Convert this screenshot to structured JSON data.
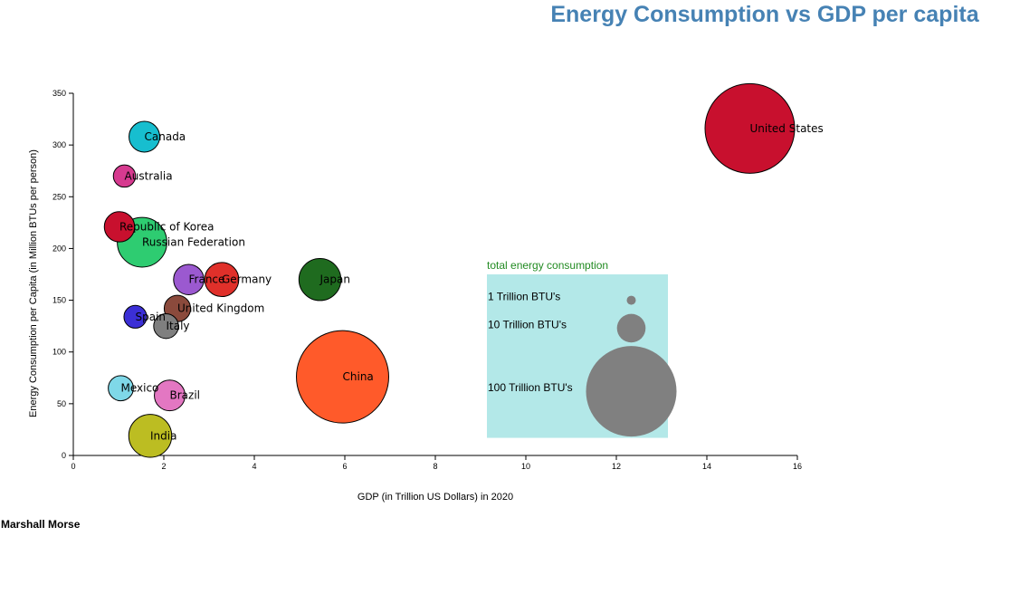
{
  "title": "Energy Consumption vs GDP per capita",
  "author": "Marshall Morse",
  "chart_data": {
    "type": "scatter",
    "title": "Energy Consumption vs GDP per capita",
    "xlabel": "GDP (in Trillion US Dollars) in 2020",
    "ylabel": "Energy Consumption per Capita (in Million BTUs per person)",
    "xlim": [
      0,
      16
    ],
    "ylim": [
      0,
      350
    ],
    "x_ticks": [
      "0",
      "2",
      "4",
      "6",
      "8",
      "10",
      "12",
      "14",
      "16"
    ],
    "y_ticks": [
      "0",
      "50",
      "100",
      "150",
      "200",
      "250",
      "300",
      "350"
    ],
    "size_encoding": "total energy consumption",
    "points": [
      {
        "country": "United States",
        "gdp": 14.95,
        "energy_per_capita": 316,
        "total_energy_trillion_btu": 98,
        "color": "#c8102e"
      },
      {
        "country": "China",
        "gdp": 5.95,
        "energy_per_capita": 76,
        "total_energy_trillion_btu": 104,
        "color": "#ff5a2a"
      },
      {
        "country": "Japan",
        "gdp": 5.45,
        "energy_per_capita": 170,
        "total_energy_trillion_btu": 21.5,
        "color": "#1f6b1f"
      },
      {
        "country": "Germany",
        "gdp": 3.28,
        "energy_per_capita": 170,
        "total_energy_trillion_btu": 14.2,
        "color": "#e0302a"
      },
      {
        "country": "France",
        "gdp": 2.55,
        "energy_per_capita": 170,
        "total_energy_trillion_btu": 11.2,
        "color": "#9b59d0"
      },
      {
        "country": "United Kingdom",
        "gdp": 2.3,
        "energy_per_capita": 142,
        "total_energy_trillion_btu": 8.5,
        "color": "#8b4a3c"
      },
      {
        "country": "Italy",
        "gdp": 2.05,
        "energy_per_capita": 125,
        "total_energy_trillion_btu": 7.5,
        "color": "#7f7f7f"
      },
      {
        "country": "Brazil",
        "gdp": 2.13,
        "energy_per_capita": 58,
        "total_energy_trillion_btu": 11.5,
        "color": "#e377c2"
      },
      {
        "country": "India",
        "gdp": 1.7,
        "energy_per_capita": 19,
        "total_energy_trillion_btu": 22.5,
        "color": "#bcbd22"
      },
      {
        "country": "Russian Federation",
        "gdp": 1.52,
        "energy_per_capita": 206,
        "total_energy_trillion_btu": 30,
        "color": "#2ecc71"
      },
      {
        "country": "Canada",
        "gdp": 1.57,
        "energy_per_capita": 308,
        "total_energy_trillion_btu": 11.5,
        "color": "#17becf"
      },
      {
        "country": "Australia",
        "gdp": 1.13,
        "energy_per_capita": 270,
        "total_energy_trillion_btu": 6,
        "color": "#d63a8f"
      },
      {
        "country": "Republic of Korea",
        "gdp": 1.02,
        "energy_per_capita": 221,
        "total_energy_trillion_btu": 11.2,
        "color": "#c8102e"
      },
      {
        "country": "Spain",
        "gdp": 1.37,
        "energy_per_capita": 134,
        "total_energy_trillion_btu": 6.3,
        "color": "#3b2fd6"
      },
      {
        "country": "Mexico",
        "gdp": 1.05,
        "energy_per_capita": 65,
        "total_energy_trillion_btu": 7.7,
        "color": "#7fd8e8"
      }
    ],
    "legend": {
      "title": "total energy consumption",
      "placement": "bottom-right inside plot",
      "background": "#b3e8e8",
      "bubble_color": "#808080",
      "entries": [
        {
          "label": "1 Trillion BTU's",
          "value": 1
        },
        {
          "label": "10 Trillion BTU's",
          "value": 10
        },
        {
          "label": "100 Trillion BTU's",
          "value": 100
        }
      ]
    }
  }
}
